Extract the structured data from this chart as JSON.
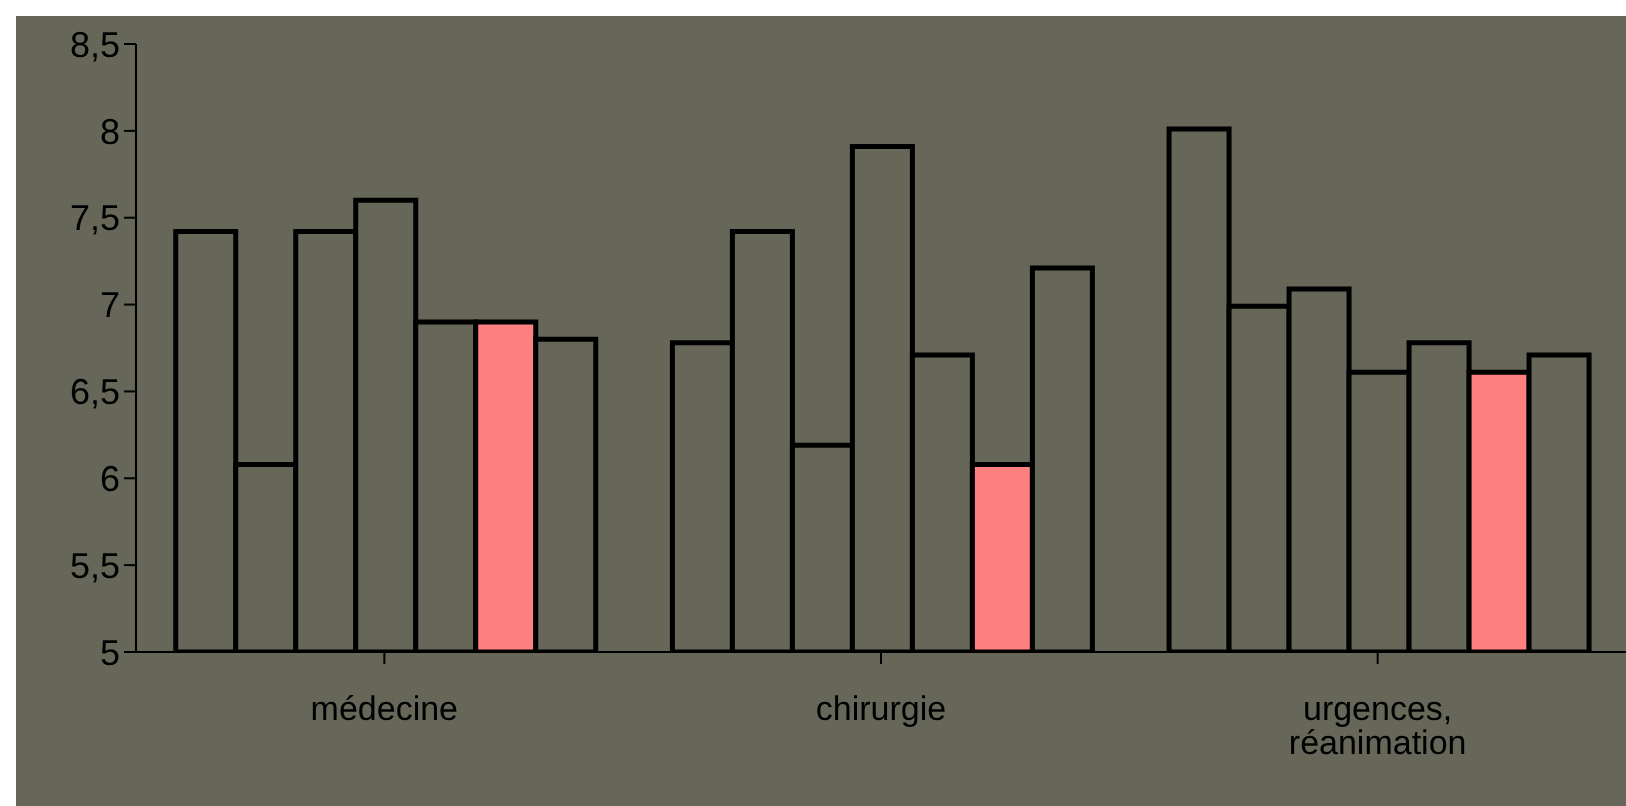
{
  "chart_data": {
    "type": "bar",
    "categories": [
      "médecine",
      "chirurgie",
      "urgences, réanimation"
    ],
    "series": [
      {
        "color": "#666659",
        "values": [
          7.42,
          6.78,
          8.01
        ]
      },
      {
        "color": "#666659",
        "values": [
          6.08,
          7.42,
          6.99
        ]
      },
      {
        "color": "#666659",
        "values": [
          7.42,
          6.19,
          7.09
        ]
      },
      {
        "color": "#666659",
        "values": [
          7.6,
          7.91,
          6.61
        ]
      },
      {
        "color": "#666659",
        "values": [
          6.9,
          6.71,
          6.78
        ]
      },
      {
        "color": "#ff8080",
        "values": [
          6.9,
          6.08,
          6.61
        ]
      },
      {
        "color": "#666659",
        "values": [
          6.8,
          7.21,
          6.71
        ]
      }
    ],
    "ylim": [
      5,
      8.5
    ],
    "yticks": [
      5,
      {
        "value": 5.5,
        "label": "5,5"
      },
      6,
      {
        "value": 6.5,
        "label": "6,5"
      },
      7,
      {
        "value": 7.5,
        "label": "7,5"
      },
      8,
      {
        "value": 8.5,
        "label": "8,5"
      }
    ],
    "grid": false,
    "legend": false
  }
}
